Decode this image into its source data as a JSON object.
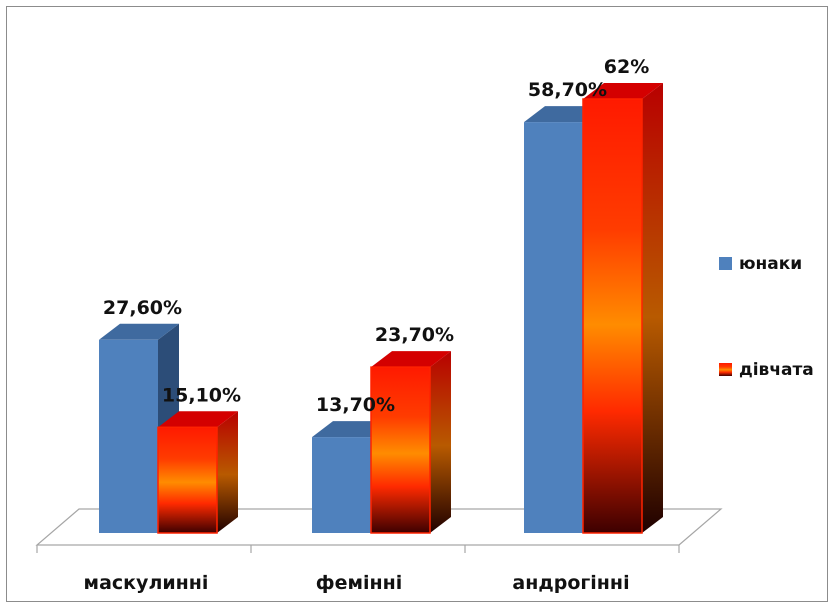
{
  "chart_data": {
    "type": "bar",
    "title": "",
    "xlabel": "",
    "ylabel": "",
    "ylim": [
      0,
      65
    ],
    "grid": false,
    "legend_position": "right",
    "categories": [
      "маскулинні",
      "фемінні",
      "андрогінні"
    ],
    "series": [
      {
        "name": "юнаки",
        "values": [
          27.6,
          13.7,
          58.7
        ],
        "labels": [
          "27,60%",
          "13,70%",
          "58,70%"
        ],
        "color": "#4f81bd"
      },
      {
        "name": "дівчата",
        "values": [
          15.1,
          23.7,
          62
        ],
        "labels": [
          "15,10%",
          "23,70%",
          "62%"
        ],
        "color": "#ff3300"
      }
    ]
  }
}
